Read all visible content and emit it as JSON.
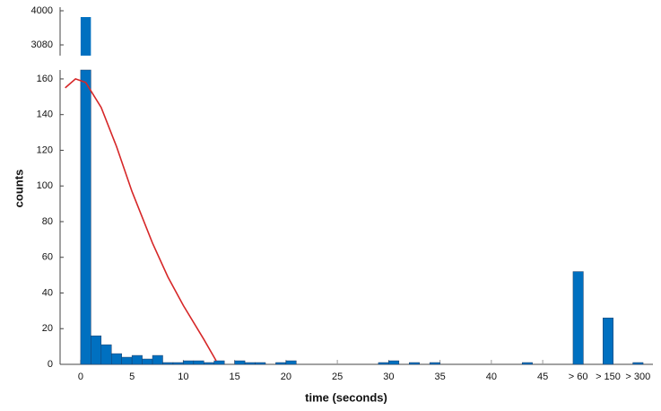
{
  "chart_data": {
    "type": "histogram",
    "xlabel": "time (seconds)",
    "ylabel": "counts",
    "x": [
      0,
      1,
      2,
      3,
      4,
      5,
      6,
      7,
      8,
      9,
      10,
      11,
      12,
      13,
      15,
      16,
      17,
      19,
      20,
      29,
      30,
      32,
      34,
      43
    ],
    "values": [
      3830,
      16,
      11,
      6,
      4,
      5,
      3,
      5,
      1,
      1,
      2,
      2,
      1,
      2,
      2,
      1,
      1,
      1,
      2,
      1,
      2,
      1,
      1,
      1
    ],
    "extra_categories": [
      "> 60",
      "> 150",
      "> 300"
    ],
    "extra_values": [
      52,
      26,
      1
    ],
    "color": "#0070c0",
    "fit": {
      "color": "#d62728",
      "x": [
        -1.5,
        -0.5,
        0.5,
        2,
        3.5,
        5,
        7,
        8.5,
        10,
        12,
        13.2
      ],
      "values": [
        155,
        160,
        158,
        144,
        122,
        97,
        68,
        49,
        33,
        14,
        2
      ]
    },
    "xlim": [
      -2,
      47
    ],
    "xticks": [
      0,
      5,
      10,
      15,
      20,
      25,
      30,
      35,
      40,
      45
    ],
    "ylim": [
      0,
      165
    ],
    "yticks": [
      0,
      20,
      40,
      60,
      80,
      100,
      120,
      140,
      160
    ],
    "y2lim": [
      2790,
      4000
    ],
    "y2ticks": [
      3080,
      4000
    ]
  }
}
